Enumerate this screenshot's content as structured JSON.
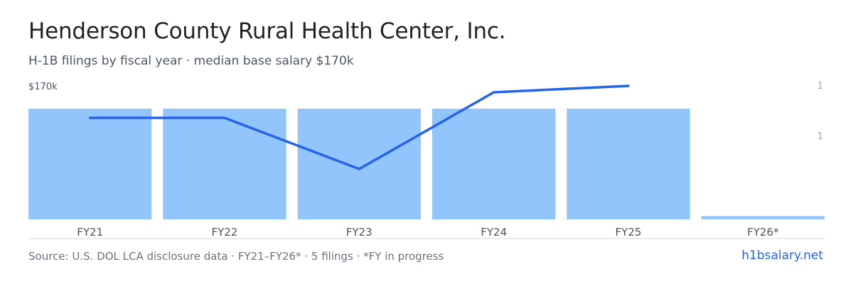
{
  "header": {
    "title": "Henderson County Rural Health Center,  Inc.",
    "subtitle": "H-1B filings by fiscal year · median base salary $170k"
  },
  "footer": {
    "source": "Source: U.S. DOL LCA disclosure data · FY21–FY26* · 5 filings · *FY in progress",
    "brand": "h1bsalary.net"
  },
  "colors": {
    "bar": "#93c5fd",
    "line": "#2563eb",
    "axis": "#d1d5db",
    "tick_text": "#6b7280"
  },
  "chart_data": {
    "type": "bar",
    "categories": [
      "FY21",
      "FY22",
      "FY23",
      "FY24",
      "FY25",
      "FY26*"
    ],
    "series": [
      {
        "type": "bar",
        "axis": "right",
        "values": [
          1,
          1,
          1,
          1,
          1,
          0.03
        ]
      },
      {
        "type": "line",
        "axis": "left",
        "values": [
          160,
          160,
          144,
          168,
          170,
          null
        ]
      }
    ],
    "left_axis": {
      "tick_label": "$170k",
      "tick_value": 170
    },
    "right_axis": {
      "tick_labels": [
        "1",
        "1"
      ]
    },
    "grid": false,
    "legend": "none"
  }
}
